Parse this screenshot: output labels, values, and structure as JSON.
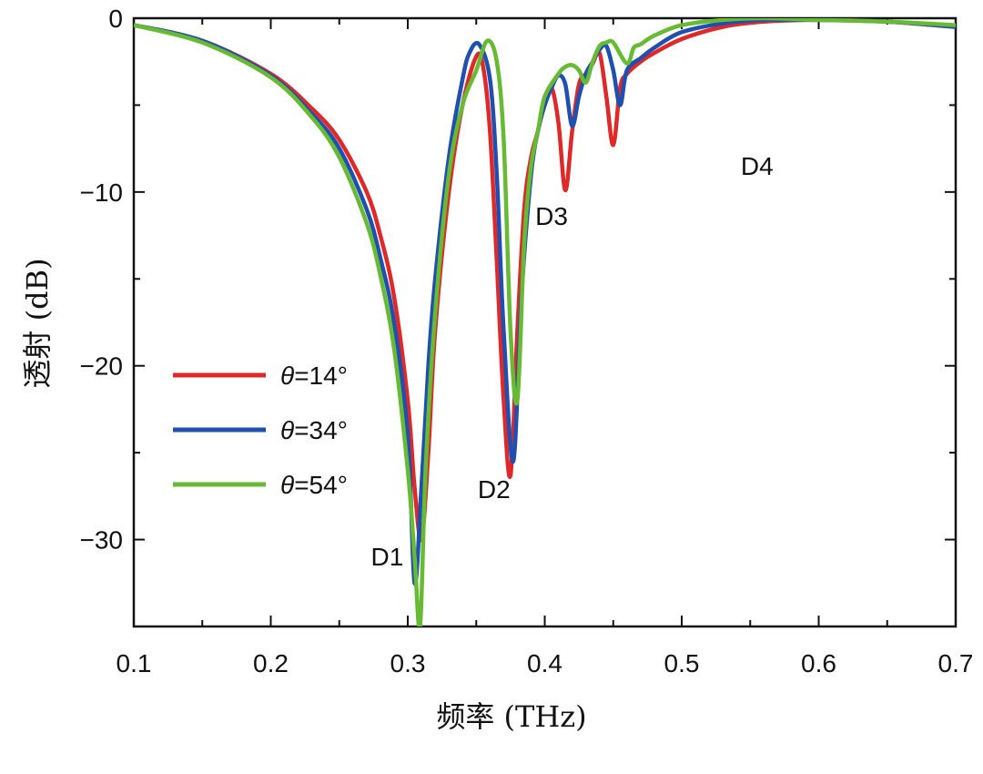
{
  "chart_data": {
    "type": "line",
    "xlabel": "频率 (THz)",
    "ylabel": "透射 (dB)",
    "xlim": [
      0.1,
      0.7
    ],
    "ylim": [
      -35,
      0
    ],
    "xticks": [
      0.1,
      0.2,
      0.3,
      0.4,
      0.5,
      0.6,
      0.7
    ],
    "xtick_labels": [
      "0.1",
      "0.2",
      "0.3",
      "0.4",
      "0.5",
      "0.6",
      "0.7"
    ],
    "yticks": [
      0,
      -10,
      -20,
      -30
    ],
    "ytick_labels": [
      "0",
      "−10",
      "−20",
      "−30"
    ],
    "grid": false,
    "legend_position": "left-middle",
    "series": [
      {
        "name": "θ=14°",
        "legend_symbol": "θ",
        "legend_value": "=14°",
        "color": "#e02828",
        "x": [
          0.1,
          0.15,
          0.2,
          0.23,
          0.25,
          0.27,
          0.28,
          0.29,
          0.3,
          0.305,
          0.31,
          0.315,
          0.32,
          0.33,
          0.34,
          0.35,
          0.355,
          0.36,
          0.365,
          0.37,
          0.375,
          0.38,
          0.385,
          0.39,
          0.395,
          0.4,
          0.405,
          0.41,
          0.415,
          0.42,
          0.425,
          0.43,
          0.435,
          0.44,
          0.445,
          0.45,
          0.455,
          0.46,
          0.47,
          0.48,
          0.5,
          0.53,
          0.56,
          0.6,
          0.65,
          0.7
        ],
        "y": [
          -0.4,
          -1.3,
          -3.2,
          -5.2,
          -7.0,
          -10.0,
          -12.5,
          -16.0,
          -22.0,
          -27.0,
          -30.0,
          -25.0,
          -18.0,
          -10.0,
          -5.0,
          -2.2,
          -2.8,
          -6.5,
          -14.0,
          -22.0,
          -26.3,
          -18.0,
          -11.0,
          -8.0,
          -6.5,
          -4.8,
          -4.0,
          -6.0,
          -9.9,
          -6.5,
          -3.8,
          -3.2,
          -2.6,
          -2.0,
          -4.5,
          -7.3,
          -4.0,
          -3.2,
          -2.5,
          -2.0,
          -1.2,
          -0.5,
          -0.2,
          -0.1,
          -0.2,
          -0.5
        ]
      },
      {
        "name": "θ=34°",
        "legend_symbol": "θ",
        "legend_value": "=34°",
        "color": "#1f4fb0",
        "x": [
          0.1,
          0.15,
          0.2,
          0.23,
          0.25,
          0.27,
          0.28,
          0.29,
          0.3,
          0.305,
          0.31,
          0.315,
          0.32,
          0.33,
          0.34,
          0.345,
          0.352,
          0.36,
          0.365,
          0.37,
          0.377,
          0.383,
          0.39,
          0.395,
          0.4,
          0.405,
          0.41,
          0.415,
          0.42,
          0.425,
          0.43,
          0.435,
          0.44,
          0.445,
          0.45,
          0.455,
          0.46,
          0.47,
          0.48,
          0.5,
          0.53,
          0.56,
          0.6,
          0.65,
          0.7
        ],
        "y": [
          -0.4,
          -1.3,
          -3.3,
          -5.5,
          -7.5,
          -11.0,
          -13.8,
          -17.5,
          -24.0,
          -32.5,
          -27.0,
          -20.0,
          -15.0,
          -8.0,
          -3.5,
          -2.0,
          -1.5,
          -3.5,
          -9.0,
          -18.0,
          -25.5,
          -16.0,
          -9.0,
          -6.5,
          -5.0,
          -4.0,
          -3.3,
          -3.8,
          -6.2,
          -4.5,
          -3.2,
          -2.5,
          -1.8,
          -1.6,
          -3.0,
          -5.0,
          -3.0,
          -2.3,
          -1.7,
          -0.8,
          -0.3,
          -0.1,
          -0.1,
          -0.2,
          -0.5
        ]
      },
      {
        "name": "θ=54°",
        "legend_symbol": "θ",
        "legend_value": "=54°",
        "color": "#66bb33",
        "x": [
          0.1,
          0.15,
          0.2,
          0.23,
          0.25,
          0.27,
          0.28,
          0.29,
          0.3,
          0.305,
          0.309,
          0.313,
          0.32,
          0.33,
          0.34,
          0.35,
          0.358,
          0.365,
          0.37,
          0.375,
          0.38,
          0.385,
          0.39,
          0.395,
          0.4,
          0.41,
          0.415,
          0.42,
          0.425,
          0.43,
          0.435,
          0.44,
          0.445,
          0.45,
          0.46,
          0.465,
          0.47,
          0.48,
          0.5,
          0.53,
          0.56,
          0.6,
          0.65,
          0.7
        ],
        "y": [
          -0.4,
          -1.4,
          -3.4,
          -5.7,
          -8.0,
          -11.8,
          -14.8,
          -19.0,
          -26.0,
          -31.0,
          -35.0,
          -26.0,
          -17.0,
          -9.0,
          -5.0,
          -3.0,
          -1.3,
          -2.5,
          -7.0,
          -18.0,
          -22.0,
          -13.0,
          -8.5,
          -6.5,
          -4.5,
          -3.2,
          -2.8,
          -2.7,
          -3.0,
          -3.7,
          -2.5,
          -1.6,
          -1.4,
          -1.4,
          -2.6,
          -1.7,
          -1.5,
          -1.0,
          -0.4,
          -0.1,
          0.0,
          -0.1,
          -0.2,
          -0.4
        ]
      }
    ],
    "annotations": [
      {
        "text": "D1",
        "x": 0.285,
        "y": -31.5
      },
      {
        "text": "D2",
        "x": 0.363,
        "y": -27.6
      },
      {
        "text": "D3",
        "x": 0.405,
        "y": -11.9
      },
      {
        "text": "D4",
        "x": 0.555,
        "y": -9.0
      }
    ]
  }
}
